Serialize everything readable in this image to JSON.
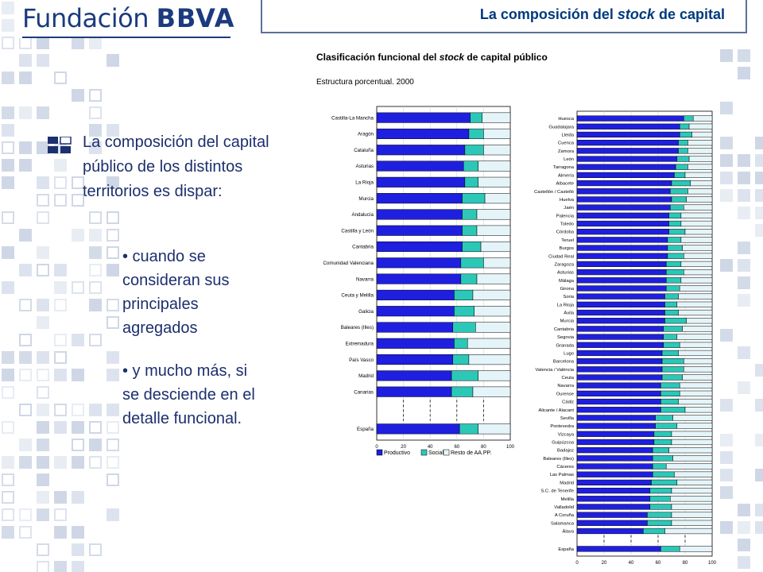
{
  "header": {
    "logo_light": "Fundación",
    "logo_bold": "BBVA",
    "title_part1": "La composición del",
    "title_italic": "stock",
    "title_part2": "de capital"
  },
  "content": {
    "main_text": "La composición del capital público de los distintos territorios es dispar:",
    "bullet1": "• cuando se consideran sus principales agregados",
    "bullet2": "• y mucho más, si se desciende en el detalle funcional."
  },
  "colors": {
    "productivo": "#1f1fe0",
    "social": "#2bc8b8",
    "resto": "#e4f4f8",
    "text": "#1c2f6e",
    "header_blue": "#003a7d"
  },
  "chart_data": [
    {
      "type": "bar",
      "orientation": "horizontal",
      "stacked": true,
      "title_part1": "Clasificación funcional del",
      "title_italic": "stock",
      "title_part2": "de capital público",
      "subtitle": "Estructura porcentual. 2000",
      "xlim": [
        0,
        100
      ],
      "xticks": [
        "0",
        "20",
        "40",
        "60",
        "80",
        "100"
      ],
      "legend": [
        "Productivo",
        "Social",
        "Resto de AA.PP."
      ],
      "legend_position": "bottom",
      "categories": [
        "Castilla-La Mancha",
        "Aragón",
        "Cataluña",
        "Asturias",
        "La Rioja",
        "Murcia",
        "Andalucía",
        "Castilla y León",
        "Cantabria",
        "Comunidad Valenciana",
        "Navarra",
        "Ceuta y Melilla",
        "Galicia",
        "Baleares (Illes)",
        "Extremadura",
        "País Vasco",
        "Madrid",
        "Canarias",
        "España"
      ],
      "series": [
        {
          "name": "Productivo",
          "values": [
            70,
            69,
            66,
            65,
            66,
            64,
            64,
            64,
            64,
            63,
            63,
            58,
            58,
            57,
            58,
            57,
            56,
            56,
            62
          ]
        },
        {
          "name": "Social",
          "values": [
            9,
            11,
            14,
            11,
            10,
            17,
            11,
            11,
            14,
            17,
            12,
            14,
            15,
            17,
            10,
            12,
            20,
            16,
            14
          ]
        },
        {
          "name": "Resto de AA.PP.",
          "values": [
            21,
            20,
            20,
            24,
            24,
            19,
            25,
            25,
            22,
            20,
            25,
            28,
            27,
            26,
            32,
            31,
            24,
            28,
            24
          ]
        }
      ]
    },
    {
      "type": "bar",
      "orientation": "horizontal",
      "stacked": true,
      "xlim": [
        0,
        100
      ],
      "xticks": [
        "0",
        "20",
        "40",
        "60",
        "80",
        "100"
      ],
      "categories": [
        "Huesca",
        "Guadalajara",
        "Lleida",
        "Cuenca",
        "Zamora",
        "León",
        "Tarragona",
        "Almería",
        "Albacete",
        "Castellón / Castelló",
        "Huelva",
        "Jaén",
        "Palencia",
        "Toledo",
        "Córdoba",
        "Teruel",
        "Burgos",
        "Ciudad Real",
        "Zaragoza",
        "Asturias",
        "Málaga",
        "Girona",
        "Soria",
        "La Rioja",
        "Ávila",
        "Murcia",
        "Cantabria",
        "Segovia",
        "Granada",
        "Lugo",
        "Barcelona",
        "Valencia / Valéncia",
        "Ceuta",
        "Navarra",
        "Ourense",
        "Cádiz",
        "Alicante / Alacant",
        "Sevilla",
        "Pontevedra",
        "Vizcaya",
        "Guipúzcoa",
        "Badajoz",
        "Baleares (Illes)",
        "Cáceres",
        "Las Palmas",
        "Madrid",
        "S.C. de Tenerife",
        "Melilla",
        "Valladolid",
        "A Coruña",
        "Salamanca",
        "Álava",
        "España"
      ],
      "series": [
        {
          "name": "Productivo",
          "values": [
            79,
            76,
            76,
            75,
            75,
            74,
            73,
            72,
            70,
            69,
            70,
            69,
            68,
            68,
            68,
            67,
            67,
            67,
            66,
            66,
            66,
            66,
            65,
            65,
            65,
            65,
            64,
            64,
            64,
            63,
            63,
            63,
            63,
            62,
            62,
            62,
            62,
            58,
            58,
            57,
            57,
            56,
            56,
            56,
            56,
            55,
            54,
            54,
            54,
            52,
            52,
            49,
            62
          ]
        },
        {
          "name": "Social",
          "values": [
            7,
            7,
            9,
            7,
            7,
            9,
            9,
            8,
            14,
            13,
            11,
            10,
            9,
            9,
            12,
            10,
            11,
            12,
            11,
            13,
            11,
            10,
            10,
            9,
            10,
            16,
            14,
            10,
            12,
            12,
            16,
            16,
            15,
            14,
            14,
            13,
            18,
            13,
            16,
            13,
            13,
            12,
            15,
            10,
            16,
            19,
            16,
            15,
            16,
            18,
            18,
            16,
            14
          ]
        },
        {
          "name": "Resto de AA.PP.",
          "values": [
            14,
            17,
            15,
            18,
            18,
            17,
            18,
            20,
            16,
            18,
            19,
            21,
            23,
            23,
            20,
            23,
            22,
            21,
            23,
            21,
            23,
            24,
            25,
            26,
            25,
            19,
            22,
            26,
            24,
            25,
            21,
            21,
            22,
            24,
            24,
            25,
            20,
            29,
            26,
            30,
            30,
            32,
            29,
            34,
            28,
            26,
            30,
            31,
            30,
            30,
            30,
            35,
            24
          ]
        }
      ]
    }
  ]
}
